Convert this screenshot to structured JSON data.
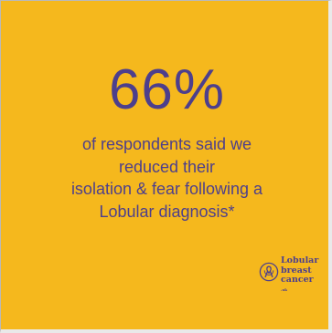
{
  "statistic": "66%",
  "description_lines": [
    "of respondents said we",
    "reduced their",
    "isolation & fear following a",
    "Lobular diagnosis*"
  ],
  "logo": {
    "icon": "ribbon-icon",
    "lines": [
      "Lobular",
      "breast",
      "cancer"
    ],
    "suffix": ".uk"
  },
  "colors": {
    "background": "#F5B81D",
    "text": "#4D3F8C"
  }
}
